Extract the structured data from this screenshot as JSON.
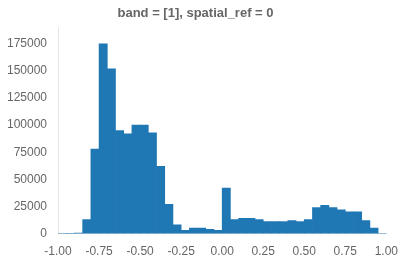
{
  "chart_data": {
    "type": "histogram",
    "title": "band = [1], spatial_ref = 0",
    "bins": [
      -1.0,
      -0.95,
      -0.9,
      -0.85,
      -0.8,
      -0.75,
      -0.7,
      -0.65,
      -0.6,
      -0.55,
      -0.5,
      -0.45,
      -0.4,
      -0.35,
      -0.3,
      -0.25,
      -0.2,
      -0.15,
      -0.1,
      -0.05,
      0.0,
      0.05,
      0.1,
      0.15,
      0.2,
      0.25,
      0.3,
      0.35,
      0.4,
      0.45,
      0.5,
      0.55,
      0.6,
      0.65,
      0.7,
      0.75,
      0.8,
      0.85,
      0.9,
      0.95,
      1.0
    ],
    "values": [
      0,
      200,
      500,
      13000,
      78000,
      175000,
      152000,
      95000,
      92000,
      100000,
      100000,
      93000,
      62000,
      27000,
      8000,
      3000,
      5000,
      5000,
      4000,
      3000,
      42000,
      13000,
      14000,
      14000,
      13000,
      11000,
      11000,
      11000,
      12000,
      11000,
      13000,
      24000,
      26000,
      24000,
      22000,
      20000,
      20000,
      12000,
      5000,
      0
    ],
    "color": "#1f77b4",
    "xlim": [
      -1.0,
      1.0
    ],
    "ylim": [
      0,
      190000
    ],
    "xticks": [
      {
        "value": -1.0,
        "label": "-1.00"
      },
      {
        "value": -0.75,
        "label": "-0.75"
      },
      {
        "value": -0.5,
        "label": "-0.50"
      },
      {
        "value": -0.25,
        "label": "-0.25"
      },
      {
        "value": 0.0,
        "label": "0.00"
      },
      {
        "value": 0.25,
        "label": "0.25"
      },
      {
        "value": 0.5,
        "label": "0.50"
      },
      {
        "value": 0.75,
        "label": "0.75"
      },
      {
        "value": 1.0,
        "label": "1.00"
      }
    ],
    "yticks": [
      0,
      25000,
      50000,
      75000,
      100000,
      125000,
      150000,
      175000
    ],
    "grid": false
  }
}
